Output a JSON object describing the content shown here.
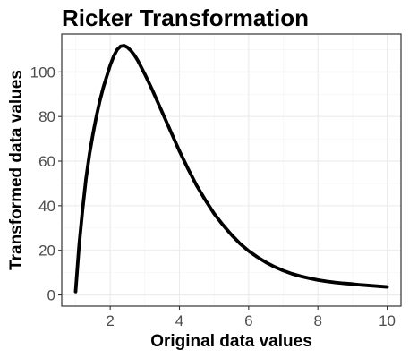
{
  "chart_data": {
    "type": "line",
    "title": "Ricker Transformation",
    "xlabel": "Original data values",
    "ylabel": "Transformed data values",
    "xlim": [
      0.6,
      10.4
    ],
    "ylim": [
      -5,
      117
    ],
    "x_ticks": [
      2,
      4,
      6,
      8,
      10
    ],
    "y_ticks": [
      0,
      20,
      40,
      60,
      80,
      100
    ],
    "x_tick_labels": [
      "2",
      "4",
      "6",
      "8",
      "10"
    ],
    "y_tick_labels": [
      "0",
      "20",
      "40",
      "60",
      "80",
      "100"
    ],
    "grid": true,
    "legend": "none",
    "series": [
      {
        "x": [
          1.0,
          1.1,
          1.2,
          1.3,
          1.4,
          1.5,
          1.6,
          1.7,
          1.8,
          1.9,
          2.0,
          2.1,
          2.2,
          2.3,
          2.4,
          2.5,
          2.6,
          2.7,
          2.8,
          3.0,
          3.2,
          3.4,
          3.6,
          3.8,
          4.0,
          4.25,
          4.5,
          4.75,
          5.0,
          5.25,
          5.5,
          5.75,
          6.0,
          6.25,
          6.5,
          6.75,
          7.0,
          7.25,
          7.5,
          7.75,
          8.0,
          8.25,
          8.5,
          8.75,
          9.0,
          9.25,
          9.5,
          9.75,
          10.0
        ],
        "values": [
          1.5,
          22.0,
          38.0,
          52.0,
          63.0,
          72.0,
          80.0,
          87.0,
          93.0,
          98.0,
          103.0,
          107.0,
          110.0,
          111.5,
          111.8,
          111.0,
          109.5,
          107.5,
          105.0,
          99.0,
          92.5,
          85.5,
          78.5,
          71.5,
          64.5,
          56.5,
          49.0,
          42.5,
          36.5,
          31.5,
          27.0,
          23.0,
          19.7,
          17.0,
          14.6,
          12.6,
          10.9,
          9.5,
          8.4,
          7.5,
          6.7,
          6.1,
          5.6,
          5.2,
          4.9,
          4.5,
          4.2,
          3.9,
          3.6
        ]
      }
    ]
  }
}
